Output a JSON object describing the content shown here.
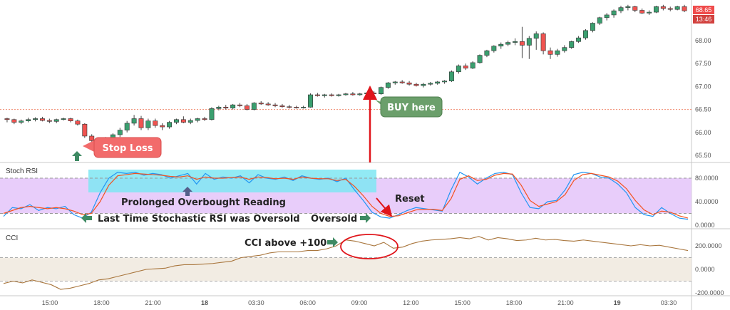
{
  "chart_data": [
    {
      "type": "candlestick",
      "pane": "price",
      "y_ticks": [
        "68.00",
        "67.50",
        "67.00",
        "66.50",
        "66.00",
        "65.50"
      ],
      "reference_line_value": 66.5,
      "last_price": "68.65",
      "countdown": "13:46",
      "candles": [
        [
          66.3,
          66.32,
          66.22,
          66.28
        ],
        [
          66.28,
          66.3,
          66.18,
          66.22
        ],
        [
          66.22,
          66.28,
          66.18,
          66.25
        ],
        [
          66.25,
          66.32,
          66.22,
          66.28
        ],
        [
          66.28,
          66.33,
          66.24,
          66.3
        ],
        [
          66.3,
          66.34,
          66.24,
          66.26
        ],
        [
          66.26,
          66.3,
          66.2,
          66.24
        ],
        [
          66.24,
          66.3,
          66.2,
          66.28
        ],
        [
          66.28,
          66.32,
          66.26,
          66.3
        ],
        [
          66.3,
          66.32,
          66.22,
          66.25
        ],
        [
          66.25,
          66.28,
          66.15,
          66.18
        ],
        [
          66.18,
          66.2,
          65.88,
          65.92
        ],
        [
          65.92,
          65.96,
          65.78,
          65.82
        ],
        [
          65.82,
          65.88,
          65.74,
          65.8
        ],
        [
          65.8,
          65.9,
          65.7,
          65.85
        ],
        [
          65.85,
          65.98,
          65.8,
          65.95
        ],
        [
          65.95,
          66.1,
          65.9,
          66.05
        ],
        [
          66.05,
          66.25,
          66.0,
          66.2
        ],
        [
          66.2,
          66.38,
          66.15,
          66.3
        ],
        [
          66.3,
          66.36,
          66.05,
          66.1
        ],
        [
          66.1,
          66.3,
          66.05,
          66.25
        ],
        [
          66.25,
          66.3,
          66.1,
          66.15
        ],
        [
          66.15,
          66.2,
          66.05,
          66.12
        ],
        [
          66.12,
          66.25,
          66.08,
          66.22
        ],
        [
          66.22,
          66.3,
          66.18,
          66.28
        ],
        [
          66.28,
          66.35,
          66.2,
          66.22
        ],
        [
          66.22,
          66.3,
          66.18,
          66.26
        ],
        [
          66.26,
          66.32,
          66.22,
          66.3
        ],
        [
          66.3,
          66.34,
          66.25,
          66.28
        ],
        [
          66.28,
          66.55,
          66.26,
          66.52
        ],
        [
          66.52,
          66.58,
          66.48,
          66.55
        ],
        [
          66.55,
          66.6,
          66.5,
          66.53
        ],
        [
          66.53,
          66.62,
          66.5,
          66.6
        ],
        [
          66.6,
          66.64,
          66.55,
          66.58
        ],
        [
          66.58,
          66.62,
          66.48,
          66.5
        ],
        [
          66.5,
          66.66,
          66.48,
          66.64
        ],
        [
          66.64,
          66.68,
          66.6,
          66.62
        ],
        [
          66.62,
          66.66,
          66.58,
          66.6
        ],
        [
          66.6,
          66.64,
          66.55,
          66.58
        ],
        [
          66.58,
          66.62,
          66.54,
          66.56
        ],
        [
          66.56,
          66.6,
          66.52,
          66.55
        ],
        [
          66.55,
          66.58,
          66.52,
          66.54
        ],
        [
          66.54,
          66.58,
          66.52,
          66.55
        ],
        [
          66.55,
          66.85,
          66.54,
          66.82
        ],
        [
          66.82,
          66.86,
          66.78,
          66.8
        ],
        [
          66.8,
          66.84,
          66.76,
          66.82
        ],
        [
          66.82,
          66.85,
          66.78,
          66.8
        ],
        [
          66.8,
          66.84,
          66.78,
          66.82
        ],
        [
          66.82,
          66.86,
          66.8,
          66.84
        ],
        [
          66.84,
          66.88,
          66.8,
          66.82
        ],
        [
          66.82,
          66.86,
          66.8,
          66.84
        ],
        [
          66.84,
          66.88,
          66.82,
          66.86
        ],
        [
          66.86,
          66.9,
          66.82,
          66.84
        ],
        [
          66.84,
          67.0,
          66.82,
          66.98
        ],
        [
          66.98,
          67.1,
          66.95,
          67.08
        ],
        [
          67.08,
          67.12,
          67.04,
          67.1
        ],
        [
          67.1,
          67.14,
          67.06,
          67.08
        ],
        [
          67.08,
          67.12,
          67.02,
          67.05
        ],
        [
          67.05,
          67.08,
          67.0,
          67.02
        ],
        [
          67.02,
          67.08,
          66.98,
          67.05
        ],
        [
          67.05,
          67.1,
          67.02,
          67.07
        ],
        [
          67.07,
          67.12,
          67.04,
          67.1
        ],
        [
          67.1,
          67.14,
          67.06,
          67.12
        ],
        [
          67.12,
          67.35,
          67.1,
          67.32
        ],
        [
          67.32,
          67.48,
          67.28,
          67.45
        ],
        [
          67.45,
          67.5,
          67.36,
          67.4
        ],
        [
          67.4,
          67.55,
          67.38,
          67.52
        ],
        [
          67.52,
          67.7,
          67.5,
          67.68
        ],
        [
          67.68,
          67.8,
          67.64,
          67.78
        ],
        [
          67.78,
          67.9,
          67.74,
          67.88
        ],
        [
          67.88,
          67.96,
          67.82,
          67.92
        ],
        [
          67.92,
          68.0,
          67.88,
          67.96
        ],
        [
          67.96,
          68.05,
          67.9,
          67.98
        ],
        [
          67.98,
          68.3,
          67.62,
          67.9
        ],
        [
          67.9,
          68.1,
          67.6,
          68.05
        ],
        [
          68.05,
          68.2,
          67.8,
          68.15
        ],
        [
          68.15,
          68.18,
          67.7,
          67.78
        ],
        [
          67.78,
          67.85,
          67.6,
          67.7
        ],
        [
          67.7,
          67.82,
          67.65,
          67.78
        ],
        [
          67.78,
          67.9,
          67.74,
          67.85
        ],
        [
          67.85,
          68.0,
          67.82,
          67.98
        ],
        [
          67.98,
          68.1,
          67.95,
          68.06
        ],
        [
          68.06,
          68.25,
          68.02,
          68.22
        ],
        [
          68.22,
          68.4,
          68.18,
          68.38
        ],
        [
          68.38,
          68.52,
          68.34,
          68.5
        ],
        [
          68.5,
          68.6,
          68.44,
          68.56
        ],
        [
          68.56,
          68.68,
          68.5,
          68.65
        ],
        [
          68.65,
          68.76,
          68.6,
          68.72
        ],
        [
          68.72,
          68.78,
          68.66,
          68.74
        ],
        [
          68.74,
          68.76,
          68.62,
          68.66
        ],
        [
          68.66,
          68.7,
          68.58,
          68.6
        ],
        [
          68.6,
          68.66,
          68.56,
          68.62
        ],
        [
          68.62,
          68.76,
          68.6,
          68.74
        ],
        [
          68.74,
          68.78,
          68.66,
          68.7
        ],
        [
          68.7,
          68.74,
          68.64,
          68.68
        ],
        [
          68.68,
          68.76,
          68.66,
          68.74
        ],
        [
          68.74,
          68.78,
          68.62,
          68.65
        ]
      ]
    },
    {
      "type": "line",
      "pane": "stoch_rsi",
      "title": "Stoch RSI",
      "ylim": [
        0,
        100
      ],
      "y_ticks": [
        "80.0000",
        "40.0000",
        "0.0000"
      ],
      "band": [
        20,
        80
      ],
      "series": [
        {
          "color": "#2196f3",
          "values": [
            15,
            30,
            28,
            35,
            25,
            30,
            28,
            32,
            18,
            12,
            22,
            55,
            80,
            90,
            88,
            90,
            85,
            88,
            86,
            80,
            84,
            88,
            70,
            88,
            78,
            82,
            80,
            84,
            72,
            86,
            80,
            78,
            82,
            76,
            84,
            80,
            78,
            80,
            74,
            80,
            60,
            42,
            22,
            14,
            12,
            18,
            25,
            30,
            28,
            26,
            24,
            60,
            90,
            82,
            70,
            80,
            88,
            90,
            86,
            55,
            30,
            28,
            40,
            42,
            60,
            86,
            90,
            88,
            82,
            80,
            70,
            55,
            30,
            18,
            15,
            30,
            20,
            12,
            10
          ]
        },
        {
          "color": "#f4511e",
          "values": [
            20,
            25,
            30,
            32,
            30,
            28,
            30,
            28,
            24,
            18,
            20,
            40,
            68,
            84,
            86,
            88,
            87,
            86,
            85,
            83,
            82,
            84,
            78,
            82,
            80,
            80,
            81,
            82,
            78,
            82,
            81,
            79,
            80,
            78,
            82,
            80,
            79,
            79,
            76,
            78,
            66,
            50,
            32,
            20,
            15,
            16,
            21,
            26,
            27,
            27,
            25,
            45,
            78,
            84,
            76,
            78,
            85,
            88,
            87,
            68,
            42,
            32,
            36,
            40,
            52,
            76,
            86,
            88,
            85,
            82,
            75,
            62,
            42,
            26,
            18,
            24,
            22,
            16,
            12
          ]
        }
      ]
    },
    {
      "type": "line",
      "pane": "cci",
      "title": "CCI",
      "ylim": [
        -250,
        350
      ],
      "y_ticks": [
        "200.0000",
        "0.0000",
        "-200.0000"
      ],
      "band": [
        -100,
        100
      ],
      "series": [
        {
          "color": "#a9763d",
          "values": [
            -120,
            -100,
            -115,
            -90,
            -110,
            -130,
            -170,
            -160,
            -140,
            -120,
            -90,
            -80,
            -60,
            -40,
            -20,
            0,
            5,
            10,
            30,
            40,
            40,
            45,
            50,
            60,
            70,
            100,
            110,
            120,
            140,
            150,
            150,
            150,
            160,
            160,
            175,
            200,
            250,
            240,
            220,
            200,
            230,
            180,
            190,
            220,
            240,
            250,
            255,
            260,
            270,
            260,
            280,
            250,
            270,
            260,
            245,
            250,
            265,
            250,
            255,
            245,
            240,
            250,
            240,
            230,
            220,
            210,
            200,
            210,
            200,
            205,
            190,
            175,
            160
          ]
        }
      ]
    }
  ],
  "x_axis": {
    "labels": [
      "15:00",
      "18:00",
      "21:00",
      "18",
      "03:30",
      "06:00",
      "09:00",
      "12:00",
      "15:00",
      "18:00",
      "21:00",
      "19",
      "03:30"
    ],
    "bold": [
      "18",
      "19"
    ]
  },
  "annotations": {
    "stop_loss": "Stop Loss",
    "buy_here": "BUY here",
    "prolonged": "Prolonged Overbought Reading",
    "last_time": "Last Time Stochastic RSI was Oversold",
    "oversold": "Oversold",
    "reset": "Reset",
    "cci_above": "CCI above +100"
  },
  "colors": {
    "up": "#26a69a",
    "down": "#ef5350",
    "up_fill": "#3a9f6f",
    "ref_line": "#f0896f",
    "stoch_band": "#e8cdfa",
    "cci_band": "#f2ece3",
    "highlight": "#7fe6f2",
    "arrow_red": "#e0151b",
    "arrow_green": "#3e8a63",
    "callout_red": "#f26b6b",
    "callout_green": "#6b9f6b",
    "price_tag": "#ef4b4b",
    "countdown_tag": "#d2413e"
  }
}
